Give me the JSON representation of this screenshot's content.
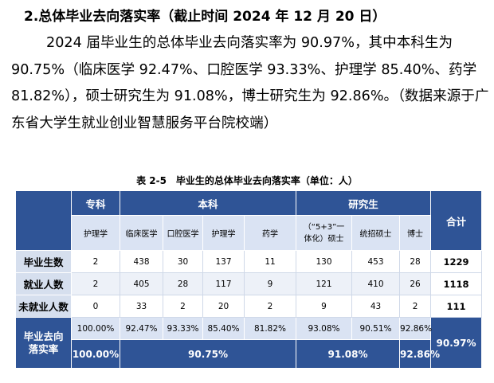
{
  "heading": "2.总体毕业去向落实率（截止时间 2024 年 12 月 20 日）",
  "paragraph": "2024 届毕业生的总体毕业去向落实率为 90.97%，其中本科生为 90.75%（临床医学 92.47%、口腔医学 93.33%、护理学 85.40%、药学 81.82%），硕士研究生为 91.08%，博士研究生为 92.86%。（数据来源于广东省大学生就业创业智慧服务平台院校端）",
  "table": {
    "caption": "表 2-5　毕业生的总体毕业去向落实率（单位：人）",
    "groups": {
      "zhuanke": "专科",
      "benke": "本科",
      "yanjiusheng": "研究生",
      "total": "合计"
    },
    "majors": {
      "huli_zk": "护理学",
      "linchuang": "临床医学",
      "kouqiang": "口腔医学",
      "huli_bk": "护理学",
      "yaoxue": "药学",
      "shuoshi_51_a": "（“5+3”一",
      "shuoshi_51_b": "体化）硕士",
      "tongzhao": "统招硕士",
      "boshi": "博士"
    },
    "rows": {
      "graduates": {
        "label": "毕业生数",
        "values": [
          "2",
          "438",
          "30",
          "137",
          "11",
          "130",
          "453",
          "28"
        ],
        "total": "1229"
      },
      "employed": {
        "label": "就业人数",
        "values": [
          "2",
          "405",
          "28",
          "117",
          "9",
          "121",
          "410",
          "26"
        ],
        "total": "1118"
      },
      "unemployed": {
        "label": "未就业人数",
        "values": [
          "0",
          "33",
          "2",
          "20",
          "2",
          "9",
          "43",
          "2"
        ],
        "total": "111"
      }
    },
    "rate": {
      "label_line1": "毕业去向",
      "label_line2": "落实率",
      "per_major": [
        "100.00%",
        "92.47%",
        "93.33%",
        "85.40%",
        "81.82%",
        "93.08%",
        "90.51%",
        "92.86%"
      ],
      "zhuanke": "100.00%",
      "benke": "90.75%",
      "shuoshi": "91.08%",
      "boshi": "92.86%",
      "total": "90.97%"
    }
  }
}
